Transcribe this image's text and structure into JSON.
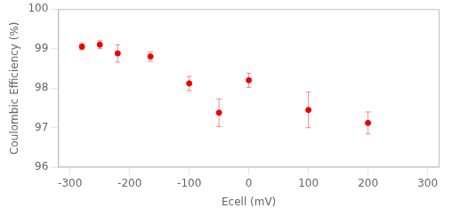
{
  "chart_data": {
    "type": "scatter",
    "xlabel": "Ecell (mV)",
    "ylabel": "Coulombic Efficiency (%)",
    "x": [
      -280,
      -250,
      -220,
      -165,
      -100,
      -50,
      0,
      100,
      200
    ],
    "values": [
      99.05,
      99.1,
      98.88,
      98.8,
      98.12,
      97.38,
      98.2,
      97.45,
      97.12
    ],
    "yerr": [
      0.08,
      0.1,
      0.22,
      0.12,
      0.18,
      0.35,
      0.18,
      0.45,
      0.28
    ],
    "color": "#EE0000",
    "marker": "circle",
    "xlim": [
      -320,
      320
    ],
    "ylim": [
      96,
      100
    ],
    "xticks": [
      -300,
      -200,
      -100,
      0,
      100,
      200,
      300
    ],
    "yticks": [
      96,
      97,
      98,
      99,
      100
    ],
    "grid": false
  }
}
